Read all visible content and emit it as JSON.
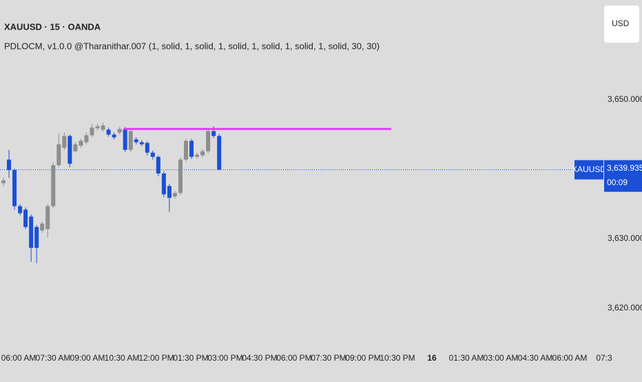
{
  "chart_data": {
    "type": "candlestick",
    "title": "XAUUSD · 15 · OANDA",
    "indicator": "PDLOCM, v1.0.0  @Tharanithar.007 (1, solid, 1, solid, 1, solid, 1, solid, 1, solid, 1, solid, 30, 30)",
    "currency": "USD",
    "symbol_tag": "XAUUSD",
    "countdown": "00:09",
    "last_price": {
      "value": 3639.935,
      "label": "3,639.935"
    },
    "up_color": "#8e8e8e",
    "down_color": "#1a4fd6",
    "level_color": "#e040fb",
    "level": 3645.8,
    "open": [
      3638.0,
      3641.4,
      3639.9,
      3634.7,
      3634.2,
      3633.2,
      3631.7,
      3631.2,
      3631.4,
      3634.7,
      3640.6,
      3643.1,
      3644.8,
      3642.6,
      3643.4,
      3643.9,
      3644.9,
      3645.9,
      3645.7,
      3645.7,
      3645.0,
      3645.3,
      3645.8,
      3642.8,
      3644.3,
      3643.9,
      3643.8,
      3642.4,
      3641.8,
      3639.4,
      3637.6,
      3636.1,
      3636.6,
      3641.4,
      3644.1,
      3641.8,
      3642.0,
      3642.6,
      3645.5,
      3644.8
    ],
    "high": [
      3638.8,
      3642.8,
      3640.1,
      3635.0,
      3634.5,
      3633.5,
      3632.0,
      3632.5,
      3635.0,
      3641.0,
      3645.2,
      3645.3,
      3645.0,
      3643.9,
      3644.4,
      3645.3,
      3646.5,
      3646.6,
      3646.7,
      3646.0,
      3645.3,
      3646.1,
      3646.1,
      3645.8,
      3644.6,
      3644.2,
      3644.0,
      3642.7,
      3642.0,
      3639.7,
      3637.9,
      3636.9,
      3641.7,
      3644.4,
      3644.4,
      3642.4,
      3642.9,
      3645.8,
      3646.2,
      3645.1
    ],
    "low": [
      3637.6,
      3638.8,
      3634.2,
      3633.4,
      3631.4,
      3626.7,
      3626.5,
      3630.9,
      3630.2,
      3634.4,
      3640.3,
      3642.8,
      3640.3,
      3642.4,
      3643.1,
      3643.6,
      3644.6,
      3645.6,
      3645.4,
      3644.7,
      3644.3,
      3645.0,
      3642.5,
      3642.5,
      3643.6,
      3643.3,
      3642.0,
      3641.4,
      3639.0,
      3636.0,
      3633.9,
      3635.8,
      3636.3,
      3641.1,
      3641.5,
      3641.5,
      3641.7,
      3642.3,
      3644.5,
      3639.935
    ],
    "close": [
      3638.4,
      3639.9,
      3634.7,
      3633.7,
      3631.7,
      3628.7,
      3628.7,
      3632.2,
      3634.7,
      3640.6,
      3643.6,
      3644.8,
      3640.8,
      3643.6,
      3644.1,
      3644.9,
      3646.0,
      3646.2,
      3646.3,
      3645.0,
      3644.6,
      3645.8,
      3642.8,
      3645.5,
      3643.9,
      3643.6,
      3642.4,
      3641.8,
      3639.4,
      3636.4,
      3635.9,
      3636.6,
      3641.4,
      3644.1,
      3641.8,
      3642.1,
      3642.6,
      3645.5,
      3644.8,
      3639.935
    ],
    "ylim": [
      3616.83,
      3664.36
    ],
    "yticks": [
      {
        "value": 3650,
        "label": "3,650.000"
      },
      {
        "value": 3630,
        "label": "3,630.000"
      },
      {
        "value": 3620,
        "label": "3,620.000"
      }
    ],
    "x_labels": [
      "06:00 AM",
      "07:30 AM",
      "09:00 AM",
      "10:30 AM",
      "12:00 PM",
      "01:30 PM",
      "03:00 PM",
      "04:30 PM",
      "06:00 PM",
      "07:30 PM",
      "09:00 PM",
      "10:30 PM",
      "16",
      "01:30 AM",
      "03:00 AM",
      "04:30 AM",
      "06:00 AM",
      "07:3"
    ]
  }
}
